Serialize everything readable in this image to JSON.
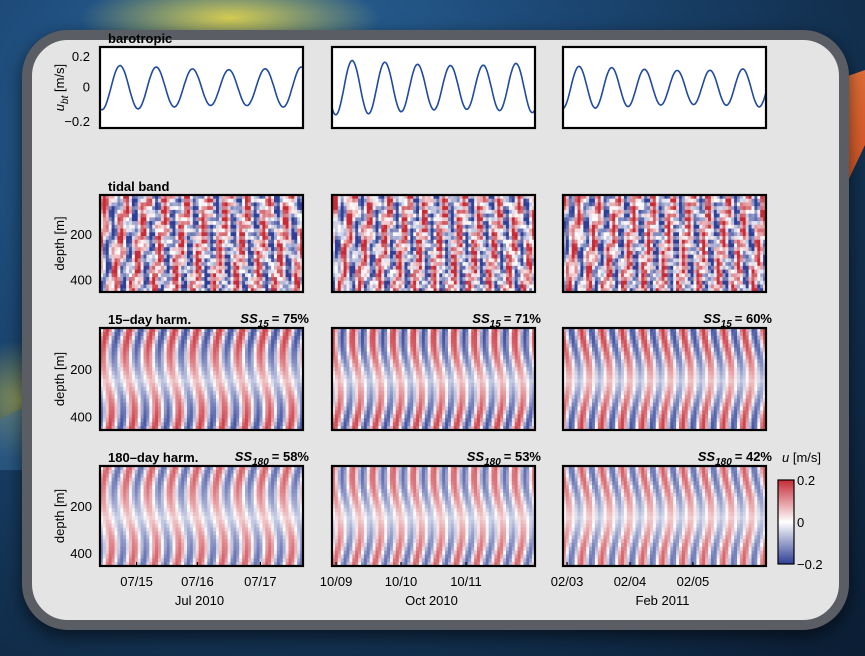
{
  "chart_data": {
    "type": "line+heatmap",
    "columns": [
      {
        "month_label": "Jul 2010",
        "x_ticks": [
          "07/15",
          "07/16",
          "07/17"
        ]
      },
      {
        "month_label": "Oct 2010",
        "x_ticks": [
          "10/09",
          "10/10",
          "10/11"
        ]
      },
      {
        "month_label": "Feb 2011",
        "x_ticks": [
          "02/03",
          "02/04",
          "02/05"
        ]
      }
    ],
    "rows": [
      {
        "title": "barotropic",
        "type": "line",
        "ylabel_main": "u",
        "ylabel_sub": "bt",
        "ylabel_unit": " [m/s]",
        "yticks": [
          "0.2",
          "0",
          "−0.2"
        ],
        "ylim": [
          -0.2,
          0.2
        ],
        "line_color": "#1f4aa0",
        "series": [
          {
            "amplitude": 0.11,
            "cycles": 5.6,
            "phase": -1.9
          },
          {
            "amplitude": 0.135,
            "cycles": 6.2,
            "phase": -2.3
          },
          {
            "amplitude": 0.105,
            "cycles": 6.2,
            "phase": -1.5
          }
        ]
      },
      {
        "title": "tidal band",
        "type": "heatmap",
        "ylabel": "depth [m]",
        "yticks": [
          "200",
          "400"
        ],
        "skill_values": [
          "",
          "",
          ""
        ],
        "skill_sub": "",
        "pattern": "noisy",
        "cycles": [
          10,
          11,
          11
        ]
      },
      {
        "title": "15–day harm.",
        "type": "heatmap",
        "ylabel": "depth [m]",
        "yticks": [
          "200",
          "400"
        ],
        "skill_prefix": "SS",
        "skill_sub": "15",
        "skill_values": [
          "= 75%",
          "= 71%",
          "= 60%"
        ],
        "pattern": "smooth",
        "cycles": [
          9,
          10,
          10
        ]
      },
      {
        "title": "180–day harm.",
        "type": "heatmap",
        "ylabel": "depth [m]",
        "yticks": [
          "200",
          "400"
        ],
        "skill_prefix": "SS",
        "skill_sub": "180",
        "skill_values": [
          "= 58%",
          "= 53%",
          "= 42%"
        ],
        "pattern": "smooth",
        "cycles": [
          9,
          10,
          10
        ]
      }
    ],
    "colorbar": {
      "label_main": "u",
      "label_unit": " [m/s]",
      "ticks": [
        "0.2",
        "0",
        "−0.2"
      ],
      "range": [
        -0.2,
        0.2
      ],
      "colors": {
        "max": "#c62b36",
        "mid": "#ffffff",
        "min": "#2f3f96"
      }
    }
  }
}
